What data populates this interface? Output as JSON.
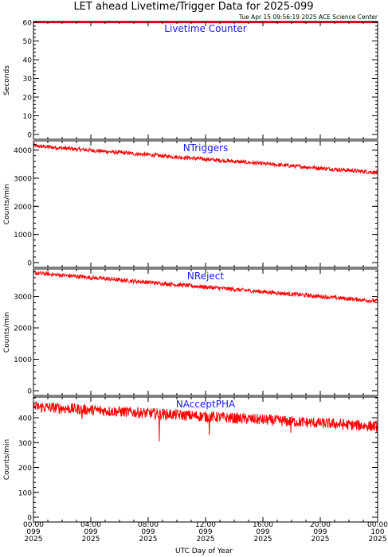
{
  "title": "LET ahead Livetime/Trigger Data for 2025-099",
  "subtitle": "Tue Apr 15 09:56:19 2025 ACE Science Center",
  "xlabel": "UTC Day of Year",
  "colors": {
    "series": "#ff0000",
    "panel_label": "#1a1aff",
    "axes": "#000000"
  },
  "chart_data": [
    {
      "type": "line",
      "panel_label": "Livetime Counter",
      "ylabel": "Seconds",
      "ylim": [
        0,
        60
      ],
      "yticks": [
        0,
        10,
        20,
        30,
        40,
        50,
        60
      ],
      "xlim": [
        0,
        24
      ],
      "series": [
        {
          "start": 60,
          "end": 60,
          "noise": 0,
          "dips": []
        }
      ]
    },
    {
      "type": "line",
      "panel_label": "NTriggers",
      "ylabel": "Counts/min",
      "ylim": [
        0,
        4300
      ],
      "yticks": [
        0,
        1000,
        2000,
        3000,
        4000
      ],
      "xlim": [
        0,
        24
      ],
      "series": [
        {
          "start": 4150,
          "end": 3200,
          "noise": 70,
          "dips": []
        }
      ]
    },
    {
      "type": "line",
      "panel_label": "NReject",
      "ylabel": "Counts/min",
      "ylim": [
        0,
        3850
      ],
      "yticks": [
        0,
        1000,
        2000,
        3000
      ],
      "xlim": [
        0,
        24
      ],
      "series": [
        {
          "start": 3750,
          "end": 2850,
          "noise": 65,
          "dips": []
        }
      ]
    },
    {
      "type": "line",
      "panel_label": "NAcceptPHA",
      "ylabel": "Counts/min",
      "ylim": [
        0,
        480
      ],
      "yticks": [
        0,
        100,
        200,
        300,
        400
      ],
      "xlim": [
        0,
        24
      ],
      "series": [
        {
          "start": 445,
          "end": 365,
          "noise": 22,
          "dips": [
            395,
            305,
            330,
            340
          ]
        }
      ]
    }
  ],
  "xticks": [
    {
      "time": "00:00",
      "doy": "099",
      "year": "2025"
    },
    {
      "time": "04:00",
      "doy": "099",
      "year": "2025"
    },
    {
      "time": "08:00",
      "doy": "099",
      "year": "2025"
    },
    {
      "time": "12:00",
      "doy": "099",
      "year": "2025"
    },
    {
      "time": "16:00",
      "doy": "099",
      "year": "2025"
    },
    {
      "time": "20:00",
      "doy": "099",
      "year": "2025"
    },
    {
      "time": "00:00",
      "doy": "100",
      "year": "2025"
    }
  ]
}
